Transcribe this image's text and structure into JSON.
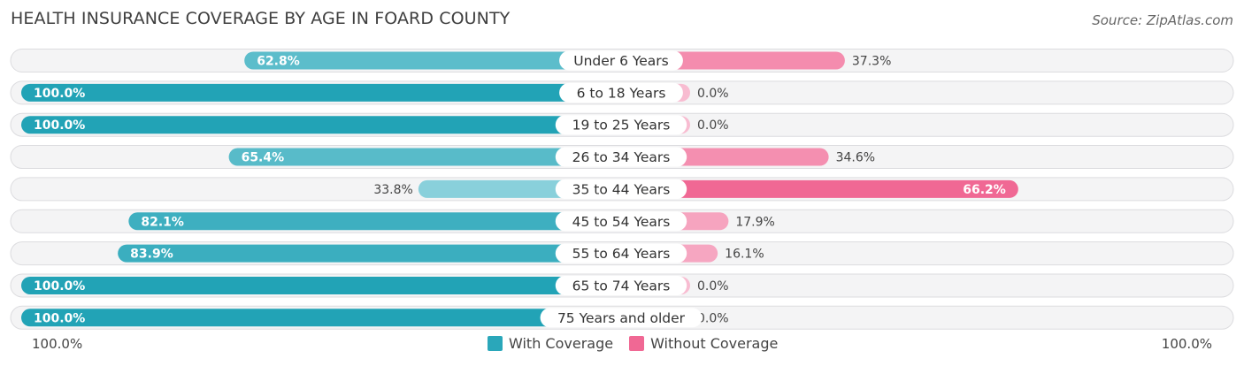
{
  "title": "HEALTH INSURANCE COVERAGE BY AGE IN FOARD COUNTY",
  "source": "Source: ZipAtlas.com",
  "bottom_labels": {
    "left": "100.0%",
    "right": "100.0%"
  },
  "legend": [
    {
      "label": "With Coverage",
      "color": "#2aa7ba"
    },
    {
      "label": "Without Coverage",
      "color": "#f06894"
    }
  ],
  "chart_data": {
    "type": "bar",
    "orientation": "horizontal-diverging",
    "title": "HEALTH INSURANCE COVERAGE BY AGE IN FOARD COUNTY",
    "categories": [
      "Under 6 Years",
      "6 to 18 Years",
      "19 to 25 Years",
      "26 to 34 Years",
      "35 to 44 Years",
      "45 to 54 Years",
      "55 to 64 Years",
      "65 to 74 Years",
      "75 Years and older"
    ],
    "series": [
      {
        "name": "With Coverage",
        "values": [
          62.8,
          100.0,
          100.0,
          65.4,
          33.8,
          82.1,
          83.9,
          100.0,
          100.0
        ],
        "labels": [
          "62.8%",
          "100.0%",
          "100.0%",
          "65.4%",
          "33.8%",
          "82.1%",
          "83.9%",
          "100.0%",
          "100.0%"
        ]
      },
      {
        "name": "Without Coverage",
        "values": [
          37.3,
          0.0,
          0.0,
          34.6,
          66.2,
          17.9,
          16.1,
          0.0,
          0.0
        ],
        "labels": [
          "37.3%",
          "0.0%",
          "0.0%",
          "34.6%",
          "66.2%",
          "17.9%",
          "16.1%",
          "0.0%",
          "0.0%"
        ]
      }
    ],
    "xlim": [
      0,
      100
    ],
    "legend_position": "bottom-center"
  }
}
